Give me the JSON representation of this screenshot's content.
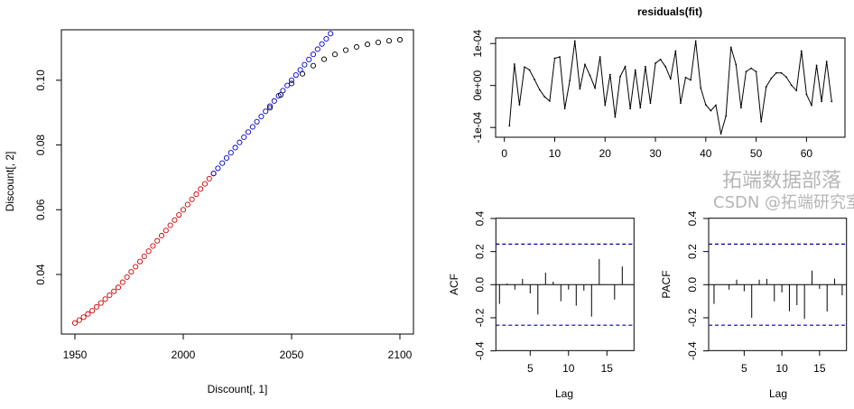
{
  "chart_data": [
    {
      "type": "scatter",
      "title": "",
      "xlabel": "Discount[, 1]",
      "ylabel": "Discount[, 2]",
      "xlim": [
        1944,
        2106
      ],
      "ylim": [
        0.0215,
        0.115
      ],
      "xticks": [
        1950,
        2000,
        2050,
        2100
      ],
      "yticks": [
        0.04,
        0.06,
        0.08,
        0.1
      ],
      "yticklabels": [
        "0.04",
        "0.06",
        "0.08",
        "0.10"
      ],
      "series": [
        {
          "name": "black",
          "color": "#000000",
          "x": [
            2040,
            2045,
            2050,
            2055,
            2060,
            2065,
            2070,
            2075,
            2080,
            2085,
            2090,
            2095,
            2100
          ],
          "y": [
            0.0915,
            0.0955,
            0.099,
            0.102,
            0.1045,
            0.1065,
            0.108,
            0.1093,
            0.1103,
            0.1111,
            0.1117,
            0.1122,
            0.1125
          ]
        },
        {
          "name": "red",
          "color": "#cc0000",
          "x_start": 1950,
          "x_step": 2,
          "y": [
            0.025,
            0.0259,
            0.0268,
            0.0278,
            0.0288,
            0.03,
            0.0312,
            0.0324,
            0.0336,
            0.0348,
            0.036,
            0.0376,
            0.0392,
            0.0408,
            0.0424,
            0.044,
            0.0456,
            0.0472,
            0.0488,
            0.0504,
            0.052,
            0.0536,
            0.0552,
            0.0568,
            0.0584,
            0.06,
            0.0616,
            0.0632,
            0.0648,
            0.0664,
            0.068,
            0.0696,
            0.0712
          ]
        },
        {
          "name": "blue",
          "color": "#0000cc",
          "x_start": 2014,
          "x_step": 2,
          "y": [
            0.0712,
            0.0728,
            0.0744,
            0.076,
            0.0776,
            0.0792,
            0.0808,
            0.0824,
            0.084,
            0.0856,
            0.0872,
            0.0888,
            0.0904,
            0.092,
            0.0936,
            0.0952,
            0.0968,
            0.0984,
            0.1,
            0.1016,
            0.1032,
            0.1048,
            0.1064,
            0.108,
            0.1096,
            0.1112,
            0.1128,
            0.1144
          ]
        }
      ]
    },
    {
      "type": "line",
      "title": "residuals(fit)",
      "xlabel": "",
      "ylabel": "",
      "xticks": [
        0,
        10,
        20,
        30,
        40,
        50,
        60
      ],
      "yticks": [
        -0.0001,
        0,
        0.0001
      ],
      "yticklabels": [
        "-1e-04",
        "0e+00",
        "1e-04"
      ],
      "x_start": 1,
      "values": [
        -9.6e-05,
        5.1e-05,
        -4.6e-05,
        4.4e-05,
        3.7e-05,
        1.4e-05,
        -1e-05,
        -2.7e-05,
        -3.7e-05,
        6.5e-05,
        6.8e-05,
        -5.5e-05,
        1.2e-05,
        0.000106,
        -8e-06,
        5e-05,
        2.4e-05,
        -6e-06,
        6.8e-05,
        -4.7e-05,
        2.6e-05,
        -7.5e-05,
        2.1e-05,
        4.5e-05,
        -5.5e-05,
        3.7e-05,
        -5.3e-05,
        4.5e-05,
        -4.2e-05,
        5.3e-05,
        6.2e-05,
        4.5e-05,
        1.6e-05,
        8.2e-05,
        -4.2e-05,
        1.9e-05,
        1.3e-05,
        0.000106,
        -6e-06,
        -4.6e-05,
        -6e-05,
        -4.7e-05,
        -0.000115,
        -7.3e-05,
        9.1e-05,
        5e-05,
        -5.3e-05,
        3.3e-05,
        4.1e-05,
        3.3e-05,
        -8.6e-05,
        -3e-06,
        1.7e-05,
        3e-05,
        3e-05,
        2e-05,
        1e-06,
        -1.2e-05,
        8.2e-05,
        -2.1e-05,
        -4.7e-05,
        4.8e-05,
        -3.8e-05,
        5.7e-05,
        -3.8e-05
      ]
    },
    {
      "type": "bar",
      "title": "",
      "xlabel": "Lag",
      "ylabel": "ACF",
      "ylim": [
        -0.4,
        0.4
      ],
      "xticks": [
        5,
        10,
        15
      ],
      "yticks": [
        -0.4,
        -0.2,
        0.0,
        0.2,
        0.4
      ],
      "yticklabels": [
        "-0.4",
        "-0.2",
        "0.0",
        "0.2",
        "0.4"
      ],
      "lags": [
        1,
        2,
        3,
        4,
        5,
        6,
        7,
        8,
        9,
        10,
        11,
        12,
        13,
        14,
        15,
        16,
        17
      ],
      "values": [
        -0.116,
        0.007,
        -0.03,
        0.035,
        -0.053,
        -0.18,
        0.073,
        0.018,
        -0.1,
        -0.03,
        -0.127,
        -0.036,
        -0.193,
        0.155,
        0.002,
        -0.09,
        0.11
      ],
      "ci": [
        -0.245,
        0.245
      ],
      "ci_color": "#0000aa"
    },
    {
      "type": "bar",
      "title": "",
      "xlabel": "Lag",
      "ylabel": "PACF",
      "ylim": [
        -0.4,
        0.4
      ],
      "xticks": [
        5,
        10,
        15
      ],
      "yticks": [
        -0.4,
        -0.2,
        0.0,
        0.2,
        0.4
      ],
      "yticklabels": [
        "-0.4",
        "-0.2",
        "0.0",
        "0.2",
        "0.4"
      ],
      "lags": [
        1,
        2,
        3,
        4,
        5,
        6,
        7,
        8,
        9,
        10,
        11,
        12,
        13,
        14,
        15,
        16,
        17,
        18
      ],
      "values": [
        -0.116,
        0.001,
        -0.03,
        0.03,
        -0.04,
        -0.2,
        0.03,
        0.035,
        -0.1,
        -0.047,
        -0.16,
        -0.124,
        -0.207,
        0.085,
        -0.025,
        -0.162,
        0.036,
        -0.064
      ],
      "ci": [
        -0.245,
        0.245
      ],
      "ci_color": "#0000aa"
    }
  ],
  "watermark": {
    "line1": "拓端数据部落",
    "line2": "CSDN @拓端研究室"
  }
}
